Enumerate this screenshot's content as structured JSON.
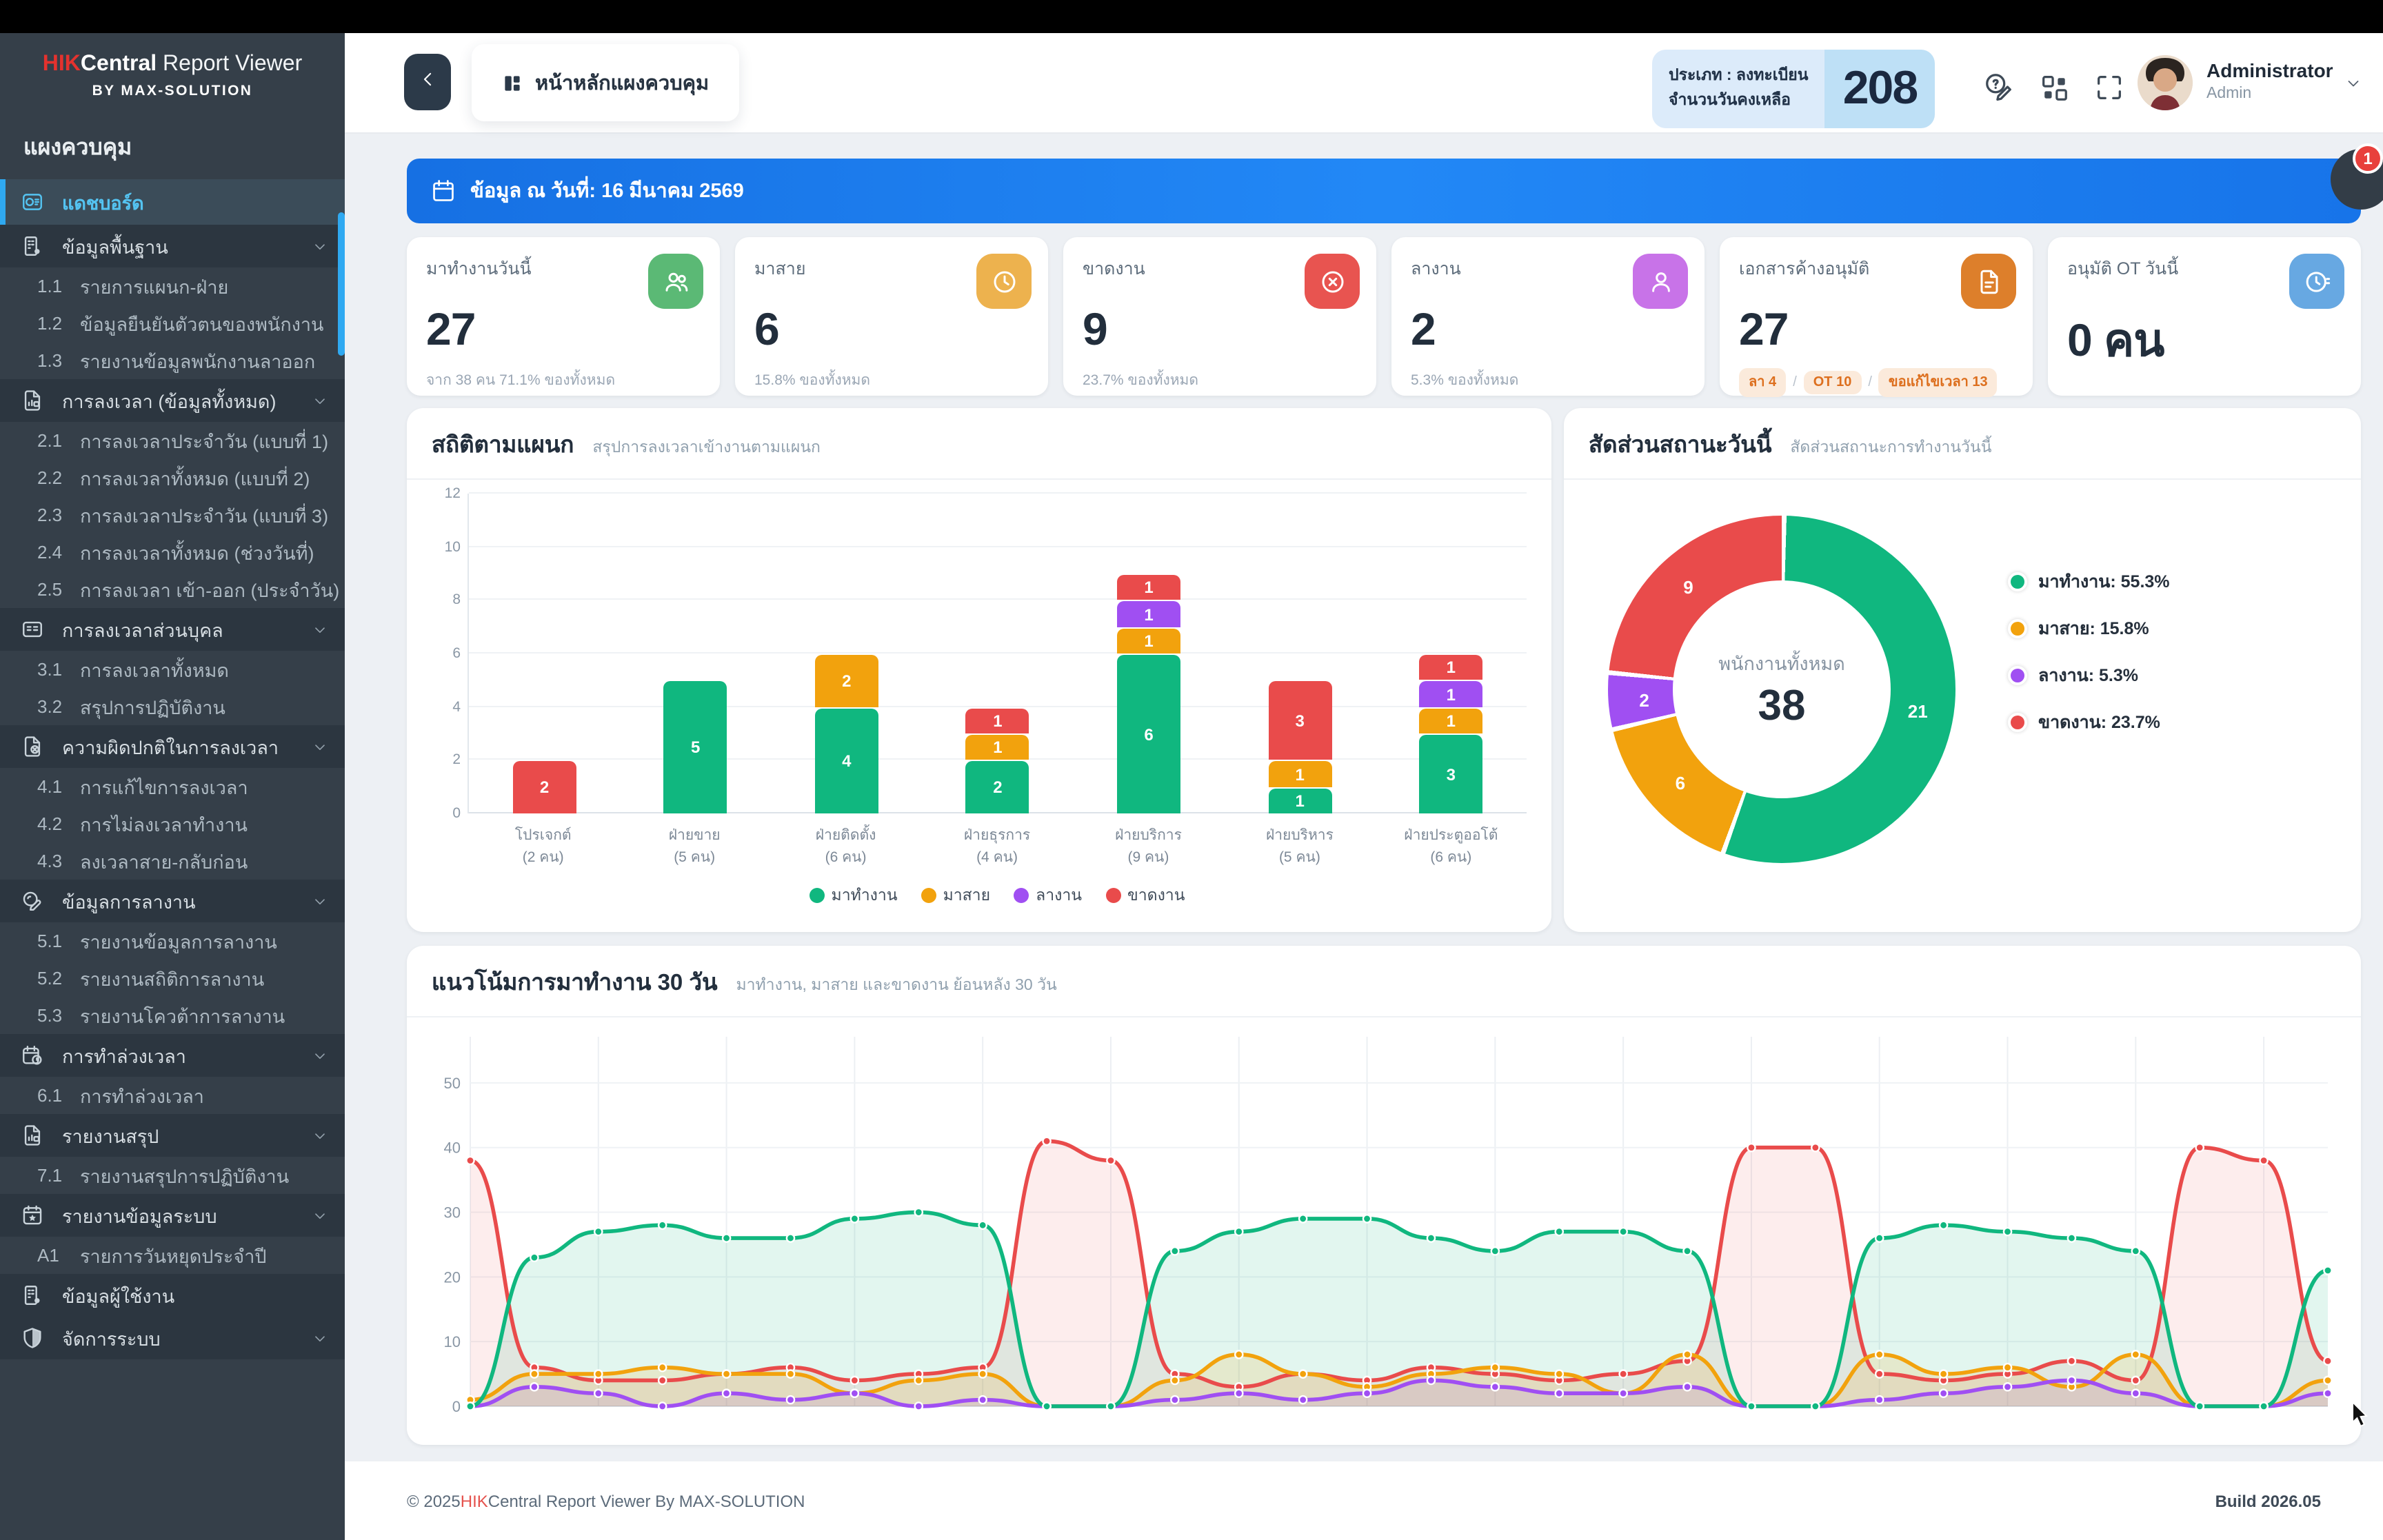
{
  "app": {
    "brand_hik": "HIK",
    "brand_central": "Central",
    "brand_rest": " Report Viewer",
    "brand_sub": "BY MAX-SOLUTION"
  },
  "sidebar": {
    "section_label": "แผงควบคุม",
    "items": [
      {
        "kind": "active",
        "icon": "dashboard-icon",
        "label": "แดชบอร์ด",
        "chevron": false
      },
      {
        "kind": "section",
        "icon": "company-icon",
        "label": "ข้อมูลพื้นฐาน",
        "chevron": true
      },
      {
        "kind": "sub",
        "num": "1.1",
        "label": "รายการแผนก-ฝ่าย"
      },
      {
        "kind": "sub",
        "num": "1.2",
        "label": "ข้อมูลยืนยันตัวตนของพนักงาน"
      },
      {
        "kind": "sub",
        "num": "1.3",
        "label": "รายงานข้อมูลพนักงานลาออก"
      },
      {
        "kind": "section",
        "icon": "time-report-icon",
        "label": "การลงเวลา (ข้อมูลทั้งหมด)",
        "chevron": true
      },
      {
        "kind": "sub",
        "num": "2.1",
        "label": "การลงเวลาประจำวัน (แบบที่ 1)"
      },
      {
        "kind": "sub",
        "num": "2.2",
        "label": "การลงเวลาทั้งหมด (แบบที่ 2)"
      },
      {
        "kind": "sub",
        "num": "2.3",
        "label": "การลงเวลาประจำวัน (แบบที่ 3)"
      },
      {
        "kind": "sub",
        "num": "2.4",
        "label": "การลงเวลาทั้งหมด (ช่วงวันที่)"
      },
      {
        "kind": "sub",
        "num": "2.5",
        "label": "การลงเวลา เข้า-ออก (ประจำวัน)"
      },
      {
        "kind": "section",
        "icon": "id-card-icon",
        "label": "การลงเวลาส่วนบุคล",
        "chevron": true
      },
      {
        "kind": "sub",
        "num": "3.1",
        "label": "การลงเวลาทั้งหมด"
      },
      {
        "kind": "sub",
        "num": "3.2",
        "label": "สรุปการปฏิบัติงาน"
      },
      {
        "kind": "section",
        "icon": "time-error-icon",
        "label": "ความผิดปกติในการลงเวลา",
        "chevron": true
      },
      {
        "kind": "sub",
        "num": "4.1",
        "label": "การแก้ไขการลงเวลา"
      },
      {
        "kind": "sub",
        "num": "4.2",
        "label": "การไม่ลงเวลาทำงาน"
      },
      {
        "kind": "sub",
        "num": "4.3",
        "label": "ลงเวลาสาย-กลับก่อน"
      },
      {
        "kind": "section",
        "icon": "leave-edit-icon",
        "label": "ข้อมูลการลางาน",
        "chevron": true
      },
      {
        "kind": "sub",
        "num": "5.1",
        "label": "รายงานข้อมูลการลางาน"
      },
      {
        "kind": "sub",
        "num": "5.2",
        "label": "รายงานสถิติการลางาน"
      },
      {
        "kind": "sub",
        "num": "5.3",
        "label": "รายงานโควต้าการลางาน"
      },
      {
        "kind": "section",
        "icon": "overtime-calendar-icon",
        "label": "การทำล่วงเวลา",
        "chevron": true
      },
      {
        "kind": "sub",
        "num": "6.1",
        "label": "การทำล่วงเวลา"
      },
      {
        "kind": "section",
        "icon": "summary-report-icon",
        "label": "รายงานสรุป",
        "chevron": true
      },
      {
        "kind": "sub",
        "num": "7.1",
        "label": "รายงานสรุปการปฏิบัติงาน"
      },
      {
        "kind": "section",
        "icon": "system-calendar-icon",
        "label": "รายงานข้อมูลระบบ",
        "chevron": true
      },
      {
        "kind": "sub",
        "num": "A1",
        "label": "รายการวันหยุดประจำปี"
      },
      {
        "kind": "section",
        "icon": "users-icon",
        "label": "ข้อมูลผู้ใช้งาน",
        "chevron": false
      },
      {
        "kind": "section",
        "icon": "shield-icon",
        "label": "จัดการระบบ",
        "chevron": true
      }
    ]
  },
  "header": {
    "page_title": "หน้าหลักแผงควบคุม",
    "days_badge": {
      "line1": "ประเภท : ลงทะเบียน",
      "line2": "จำนวนวันคงเหลือ",
      "value": "208"
    },
    "user": {
      "name": "Administrator",
      "role": "Admin"
    }
  },
  "banner": {
    "text": "ข้อมูล ณ วันที่: 16 มีนาคม 2569",
    "notification_count": "1"
  },
  "stat_cards": [
    {
      "title": "มาทำงานวันนี้",
      "value": "27",
      "sub": "จาก 38 คน 71.1% ของทั้งหมด",
      "icon": "people-icon",
      "color": "#5BB975"
    },
    {
      "title": "มาสาย",
      "value": "6",
      "sub": "15.8% ของทั้งหมด",
      "icon": "clock-icon",
      "color": "#EDB24E"
    },
    {
      "title": "ขาดงาน",
      "value": "9",
      "sub": "23.7% ของทั้งหมด",
      "icon": "x-circle-icon",
      "color": "#E85450"
    },
    {
      "title": "ลางาน",
      "value": "2",
      "sub": "5.3% ของทั้งหมด",
      "icon": "person-icon",
      "color": "#C873E8"
    },
    {
      "title": "เอกสารค้างอนุมัติ",
      "value": "27",
      "chips": [
        "ลา 4",
        "OT 10",
        "ขอแก้ไขเวลา 13"
      ],
      "icon": "document-icon",
      "color": "#DD7F2B"
    },
    {
      "title": "อนุมัติ OT วันนี้",
      "value": "0 คน",
      "icon": "ot-clock-icon",
      "color": "#67A8E2"
    }
  ],
  "chart_data": [
    {
      "id": "dept_bar",
      "type": "bar",
      "stacked": true,
      "title": "สถิติตามแผนก",
      "subtitle": "สรุปการลงเวลาเข้างานตามแผนก",
      "categories": [
        "โปรเจกต์",
        "ฝ่ายขาย",
        "ฝ่ายติดตั้ง",
        "ฝ่ายธุรการ",
        "ฝ่ายบริการ",
        "ฝ่ายบริหาร",
        "ฝ่ายประตูออโต้"
      ],
      "category_counts": [
        "(2 คน)",
        "(5 คน)",
        "(6 คน)",
        "(4 คน)",
        "(9 คน)",
        "(5 คน)",
        "(6 คน)"
      ],
      "series": [
        {
          "name": "มาทำงาน",
          "color": "#10B77F",
          "values": [
            0,
            5,
            4,
            2,
            6,
            1,
            3
          ]
        },
        {
          "name": "มาสาย",
          "color": "#F2A20D",
          "values": [
            0,
            0,
            2,
            1,
            1,
            1,
            1
          ]
        },
        {
          "name": "ลางาน",
          "color": "#A04FF2",
          "values": [
            0,
            0,
            0,
            0,
            1,
            0,
            1
          ]
        },
        {
          "name": "ขาดงาน",
          "color": "#E94B4B",
          "values": [
            2,
            0,
            0,
            1,
            1,
            3,
            1
          ]
        }
      ],
      "ylim": [
        0,
        12
      ],
      "yticks": [
        0,
        2,
        4,
        6,
        8,
        10,
        12
      ],
      "grid": true,
      "legend_position": "bottom"
    },
    {
      "id": "status_donut",
      "type": "pie",
      "title": "สัดส่วนสถานะวันนี้",
      "subtitle": "สัดส่วนสถานะการทำงานวันนี้",
      "center_label": "พนักงานทั้งหมด",
      "center_value": "38",
      "slices": [
        {
          "label": "มาทำงาน",
          "value": 21,
          "pct": "55.3%",
          "color": "#10B77F"
        },
        {
          "label": "มาสาย",
          "value": 6,
          "pct": "15.8%",
          "color": "#F2A20D"
        },
        {
          "label": "ลางาน",
          "value": 2,
          "pct": "5.3%",
          "color": "#A04FF2"
        },
        {
          "label": "ขาดงาน",
          "value": 9,
          "pct": "23.7%",
          "color": "#E94B4B"
        }
      ],
      "legend_position": "right"
    },
    {
      "id": "trend_line",
      "type": "line",
      "title": "แนวโน้มการมาทำงาน 30 วัน",
      "subtitle": "มาทำงาน, มาสาย และขาดงาน ย้อนหลัง 30 วัน",
      "x_note": "30 daily points, x-axis labels cut off below card edge",
      "ylim": [
        0,
        55
      ],
      "yticks": [
        0,
        10,
        20,
        30,
        40,
        50
      ],
      "grid": true,
      "series": [
        {
          "name": "มาทำงาน",
          "color": "#10B77F",
          "fill": "rgba(16,183,127,0.12)",
          "values": [
            0,
            23,
            27,
            28,
            26,
            26,
            29,
            30,
            28,
            0,
            0,
            24,
            27,
            29,
            29,
            26,
            24,
            27,
            27,
            24,
            0,
            0,
            26,
            28,
            27,
            26,
            24,
            0,
            0,
            21
          ]
        },
        {
          "name": "มาสาย",
          "color": "#F2A20D",
          "fill": "rgba(242,162,13,0.15)",
          "values": [
            1,
            5,
            5,
            6,
            5,
            5,
            2,
            4,
            5,
            0,
            0,
            4,
            8,
            5,
            3,
            5,
            6,
            5,
            2,
            8,
            0,
            0,
            8,
            5,
            6,
            3,
            8,
            0,
            0,
            4
          ]
        },
        {
          "name": "ลางาน",
          "color": "#A04FF2",
          "fill": "rgba(160,79,242,0.12)",
          "values": [
            0,
            3,
            2,
            0,
            2,
            1,
            2,
            0,
            1,
            0,
            0,
            1,
            2,
            1,
            2,
            4,
            3,
            2,
            2,
            3,
            0,
            0,
            1,
            2,
            3,
            4,
            2,
            0,
            0,
            2
          ]
        },
        {
          "name": "ขาดงาน",
          "color": "#E94B4B",
          "fill": "rgba(233,75,75,0.10)",
          "values": [
            38,
            6,
            4,
            4,
            5,
            6,
            4,
            5,
            6,
            41,
            38,
            5,
            3,
            5,
            4,
            6,
            5,
            4,
            5,
            7,
            40,
            40,
            5,
            4,
            5,
            7,
            4,
            40,
            38,
            7
          ]
        }
      ]
    }
  ],
  "footer": {
    "copyright_prefix": "© 2025",
    "copyright_hik": "HIK",
    "copyright_rest": "Central Report Viewer By MAX-SOLUTION",
    "build": "Build 2026.05"
  }
}
